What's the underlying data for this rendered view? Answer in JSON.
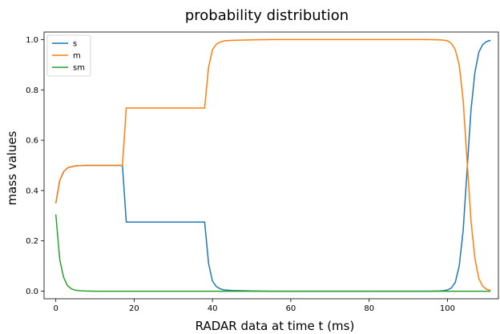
{
  "chart_data": {
    "type": "line",
    "title": "probability distribution",
    "xlabel": "RADAR data at time t (ms)",
    "ylabel": "mass values",
    "xlim": [
      -3,
      113
    ],
    "ylim": [
      -0.03,
      1.03
    ],
    "xticks": [
      0,
      20,
      40,
      60,
      80,
      100
    ],
    "yticks": [
      0.0,
      0.2,
      0.4,
      0.6,
      0.8,
      1.0
    ],
    "xtick_labels": [
      "0",
      "20",
      "40",
      "60",
      "80",
      "100"
    ],
    "ytick_labels": [
      "0.0",
      "0.2",
      "0.4",
      "0.6",
      "0.8",
      "1.0"
    ],
    "grid": false,
    "legend_position": "top-left",
    "series": [
      {
        "name": "s",
        "color": "#1f77b4",
        "x": [
          0,
          1,
          2,
          3,
          4,
          5,
          6,
          8,
          10,
          12,
          14,
          16,
          17,
          18,
          19,
          20,
          25,
          30,
          35,
          37,
          38,
          39,
          40,
          41,
          42,
          43,
          45,
          47,
          50,
          55,
          60,
          70,
          80,
          90,
          95,
          98,
          99,
          100,
          101,
          102,
          103,
          104,
          105,
          106,
          107,
          108,
          109,
          110,
          111
        ],
        "y": [
          0.35,
          0.44,
          0.475,
          0.49,
          0.495,
          0.498,
          0.499,
          0.5,
          0.5,
          0.5,
          0.5,
          0.5,
          0.5,
          0.275,
          0.275,
          0.275,
          0.275,
          0.275,
          0.275,
          0.275,
          0.275,
          0.11,
          0.04,
          0.018,
          0.009,
          0.005,
          0.003,
          0.002,
          0.001,
          0.0,
          0.0,
          0.0,
          0.0,
          0.0,
          0.0,
          0.001,
          0.002,
          0.005,
          0.013,
          0.035,
          0.1,
          0.24,
          0.48,
          0.72,
          0.87,
          0.95,
          0.98,
          0.992,
          0.997
        ]
      },
      {
        "name": "m",
        "color": "#ff7f0e",
        "x": [
          0,
          1,
          2,
          3,
          4,
          5,
          6,
          8,
          10,
          12,
          14,
          16,
          17,
          18,
          19,
          20,
          25,
          30,
          35,
          37,
          38,
          39,
          40,
          41,
          42,
          43,
          45,
          47,
          50,
          55,
          60,
          70,
          80,
          90,
          95,
          98,
          99,
          100,
          101,
          102,
          103,
          104,
          105,
          106,
          107,
          108,
          109,
          110,
          111
        ],
        "y": [
          0.35,
          0.44,
          0.475,
          0.49,
          0.495,
          0.498,
          0.499,
          0.5,
          0.5,
          0.5,
          0.5,
          0.5,
          0.5,
          0.728,
          0.728,
          0.728,
          0.728,
          0.728,
          0.728,
          0.728,
          0.728,
          0.89,
          0.96,
          0.982,
          0.991,
          0.995,
          0.997,
          0.998,
          0.999,
          1.0,
          1.0,
          1.0,
          1.0,
          1.0,
          1.0,
          0.999,
          0.998,
          0.995,
          0.985,
          0.96,
          0.9,
          0.76,
          0.52,
          0.28,
          0.13,
          0.05,
          0.02,
          0.008,
          0.003
        ]
      },
      {
        "name": "sm",
        "color": "#2ca02c",
        "x": [
          0,
          1,
          2,
          3,
          4,
          5,
          6,
          7,
          8,
          10,
          12,
          15,
          20,
          40,
          60,
          80,
          100,
          111
        ],
        "y": [
          0.305,
          0.125,
          0.055,
          0.022,
          0.009,
          0.004,
          0.002,
          0.001,
          0.0005,
          0.0,
          0.0,
          0.0,
          0.0,
          0.0,
          0.0,
          0.0,
          0.0,
          0.0
        ]
      }
    ]
  }
}
